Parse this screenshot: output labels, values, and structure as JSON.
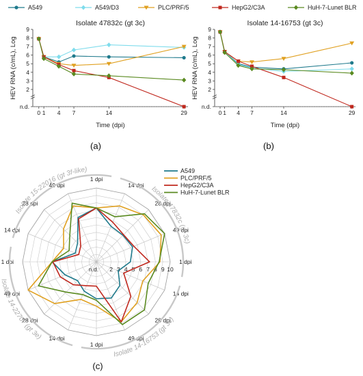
{
  "colors": {
    "A549": "#1f7a8c",
    "A549/D3": "#7fdcec",
    "PLC/PRF/5": "#e0a020",
    "HepG2/C3A": "#c0281e",
    "HuH-7-Lunet BLR": "#5a8a20",
    "grid": "#cfcfcf",
    "iso": "#c8c8c8"
  },
  "legend_top": [
    "A549",
    "A549/D3",
    "PLC/PRF/5",
    "HepG2/C3A",
    "HuH-7-Lunet BLR"
  ],
  "panel_labels": {
    "a": "(a)",
    "b": "(b)",
    "c": "(c)"
  },
  "chart_data": [
    {
      "type": "line",
      "title": "Isolate 47832c (gt 3c)",
      "xlabel": "Time (dpi)",
      "ylabel": "HEV RNA (c/mL), Log",
      "x_ticks": [
        "0",
        "1",
        "4",
        "7",
        "14",
        "29"
      ],
      "x_values": [
        0,
        1,
        4,
        7,
        14,
        29
      ],
      "y_ticks": [
        "n.d.",
        "2",
        "3",
        "4",
        "5",
        "6",
        "7",
        "8",
        "9"
      ],
      "ylim": [
        0,
        9
      ],
      "series": [
        {
          "name": "A549",
          "values": [
            [
              0,
              7.9
            ],
            [
              1,
              5.8
            ],
            [
              4,
              5.2
            ],
            [
              7,
              5.9
            ],
            [
              14,
              5.8
            ],
            [
              29,
              5.7
            ]
          ]
        },
        {
          "name": "A549/D3",
          "values": [
            [
              0,
              7.9
            ],
            [
              1,
              5.8
            ],
            [
              4,
              5.8
            ],
            [
              7,
              6.6
            ],
            [
              14,
              7.2
            ],
            [
              29,
              6.9
            ]
          ]
        },
        {
          "name": "PLC/PRF/5",
          "values": [
            [
              0,
              7.9
            ],
            [
              1,
              5.8
            ],
            [
              4,
              5.0
            ],
            [
              7,
              4.8
            ],
            [
              14,
              5.0
            ],
            [
              29,
              7.0
            ]
          ]
        },
        {
          "name": "HepG2/C3A",
          "values": [
            [
              0,
              7.9
            ],
            [
              1,
              5.8
            ],
            [
              4,
              4.9
            ],
            [
              7,
              4.2
            ],
            [
              14,
              3.4
            ],
            [
              29,
              0.0
            ]
          ]
        },
        {
          "name": "HuH-7-Lunet BLR",
          "values": [
            [
              0,
              7.9
            ],
            [
              1,
              5.6
            ],
            [
              4,
              4.7
            ],
            [
              7,
              3.8
            ],
            [
              14,
              3.6
            ],
            [
              29,
              3.1
            ]
          ]
        }
      ]
    },
    {
      "type": "line",
      "title": "Isolate 14-16753 (gt 3c)",
      "xlabel": "Time (dpi)",
      "ylabel": "HEV RNA (c/mL), Log",
      "x_ticks": [
        "0",
        "1",
        "4",
        "7",
        "14",
        "29"
      ],
      "x_values": [
        0,
        1,
        4,
        7,
        14,
        29
      ],
      "y_ticks": [
        "n.d.",
        "2",
        "3",
        "4",
        "5",
        "6",
        "7",
        "8",
        "9"
      ],
      "ylim": [
        0,
        9
      ],
      "series": [
        {
          "name": "A549",
          "values": [
            [
              0,
              8.7
            ],
            [
              1,
              6.4
            ],
            [
              4,
              5.0
            ],
            [
              7,
              4.6
            ],
            [
              14,
              4.4
            ],
            [
              29,
              5.1
            ]
          ]
        },
        {
          "name": "A549/D3",
          "values": [
            [
              0,
              8.7
            ],
            [
              1,
              6.4
            ],
            [
              4,
              4.9
            ],
            [
              7,
              4.5
            ],
            [
              14,
              4.1
            ],
            [
              29,
              4.4
            ]
          ]
        },
        {
          "name": "PLC/PRF/5",
          "values": [
            [
              0,
              8.7
            ],
            [
              1,
              6.4
            ],
            [
              4,
              5.3
            ],
            [
              7,
              5.2
            ],
            [
              14,
              5.6
            ],
            [
              29,
              7.4
            ]
          ]
        },
        {
          "name": "HepG2/C3A",
          "values": [
            [
              0,
              8.7
            ],
            [
              1,
              6.4
            ],
            [
              4,
              5.3
            ],
            [
              7,
              4.7
            ],
            [
              14,
              3.4
            ],
            [
              29,
              0.0
            ]
          ]
        },
        {
          "name": "HuH-7-Lunet BLR",
          "values": [
            [
              0,
              8.7
            ],
            [
              1,
              6.3
            ],
            [
              4,
              4.8
            ],
            [
              7,
              4.4
            ],
            [
              14,
              4.3
            ],
            [
              29,
              3.9
            ]
          ]
        }
      ]
    },
    {
      "type": "radar",
      "legend": [
        "A549",
        "PLC/PRF/5",
        "HepG2/C3A",
        "HuH-7-Lunet BLR"
      ],
      "axis_labels": [
        "1 dpi",
        "14 dpi",
        "28 dpi",
        "49 dpi",
        "1 dpi",
        "14 dpi",
        "28 dpi",
        "49 dpi",
        "1 dpi",
        "14 dpi",
        "28 dpi",
        "49 dpi",
        "1 dpi",
        "14 dpi",
        "28 dpi",
        "49 dpi"
      ],
      "radial_ticks": [
        "n.d.",
        "2",
        "3",
        "4",
        "5",
        "6",
        "7",
        "8",
        "9",
        "10"
      ],
      "rlim": [
        0,
        10
      ],
      "isolates": [
        "Isolate 47832c (gt 3c)",
        "Isolate 14-16753 (gt 3c)",
        "Isolate 14-22707 (gt 3e)",
        "Isolate 15-22016 (gt 3f-like)"
      ],
      "series": [
        {
          "name": "A549",
          "values": [
            7.3,
            5.2,
            5.1,
            5.3,
            4.6,
            3.2,
            4.5,
            5.3,
            5.0,
            4.3,
            3.6,
            4.6,
            6.0,
            3.1,
            3.6,
            6.5
          ]
        },
        {
          "name": "PLC/PRF/5",
          "values": [
            7.3,
            8.2,
            9.0,
            9.5,
            8.6,
            6.8,
            7.8,
            8.8,
            6.0,
            5.5,
            8.0,
            10.0,
            6.0,
            4.8,
            6.3,
            8.2
          ]
        },
        {
          "name": "HepG2/C3A",
          "values": [
            7.3,
            5.8,
            5.2,
            5.5,
            7.2,
            4.0,
            6.6,
            8.8,
            3.3,
            3.5,
            4.4,
            5.3,
            5.9,
            2.6,
            3.0,
            6.3
          ]
        },
        {
          "name": "HuH-7-Lunet BLR",
          "values": [
            7.3,
            6.6,
            9.2,
            10.0,
            8.5,
            7.6,
            9.2,
            9.2,
            5.2,
            4.8,
            5.8,
            8.5,
            6.0,
            4.0,
            5.1,
            8.6
          ]
        }
      ]
    }
  ]
}
